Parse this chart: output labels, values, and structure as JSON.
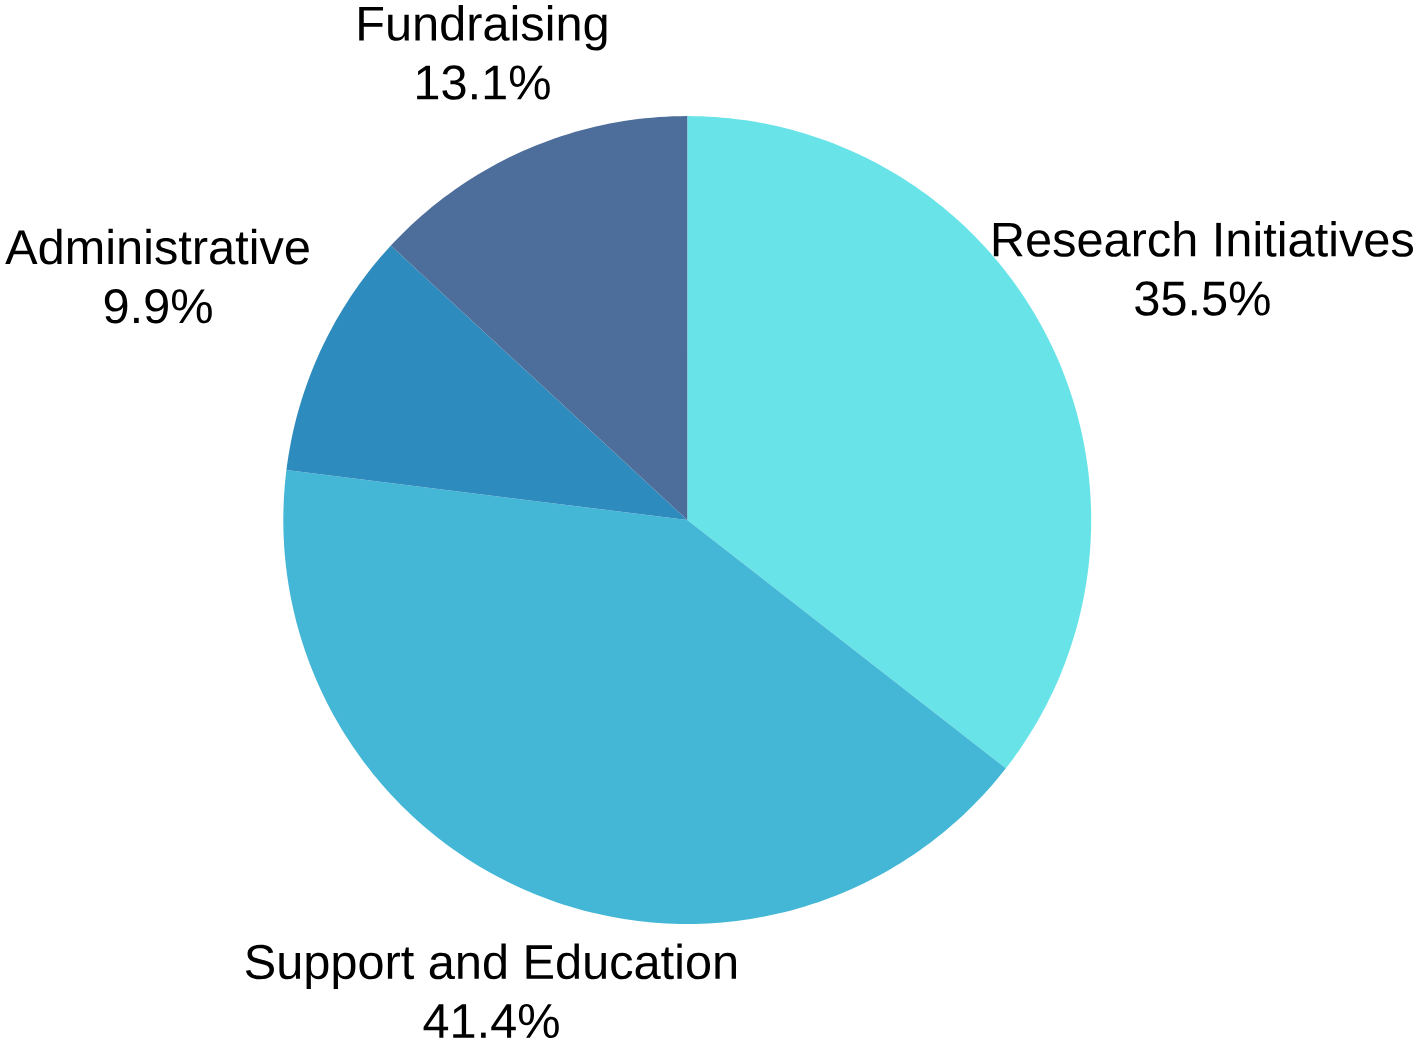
{
  "chart_data": {
    "type": "pie",
    "categories": [
      "Research Initiatives",
      "Support and Education",
      "Administrative",
      "Fundraising"
    ],
    "values": [
      35.5,
      41.4,
      9.9,
      13.1
    ],
    "value_labels": [
      "35.5%",
      "41.4%",
      "9.9%",
      "13.1%"
    ],
    "colors": [
      "#68e3e8",
      "#44b7d6",
      "#2e8bbd",
      "#4d6d9a"
    ]
  }
}
